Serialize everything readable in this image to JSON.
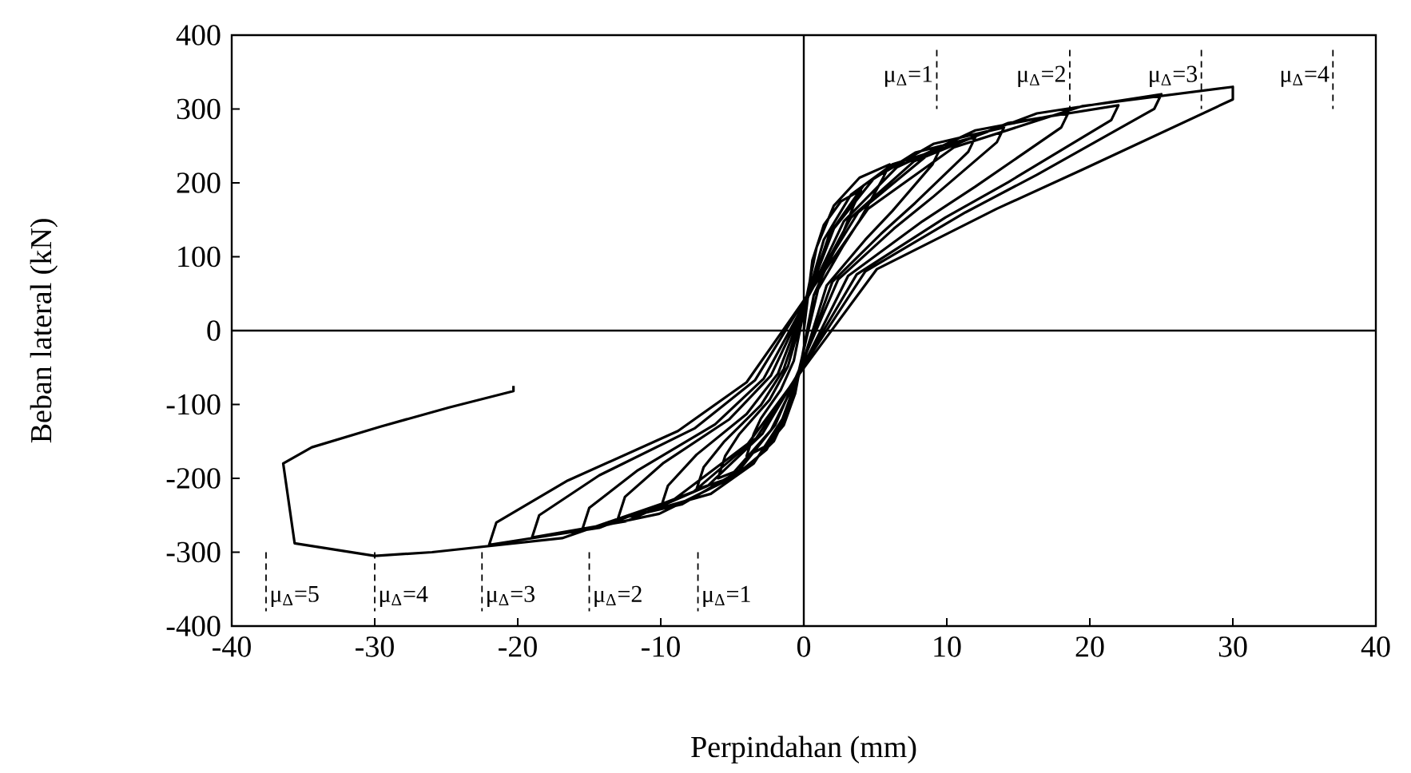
{
  "chart_data": {
    "type": "line",
    "xlabel": "Perpindahan (mm)",
    "ylabel": "Beban lateral (kN)",
    "xlim": [
      -40,
      40
    ],
    "ylim": [
      -400,
      400
    ],
    "xticks": [
      -40,
      -30,
      -20,
      -10,
      0,
      10,
      20,
      30,
      40
    ],
    "yticks": [
      -400,
      -300,
      -200,
      -100,
      0,
      100,
      200,
      300,
      400
    ],
    "marker": "none",
    "line_style": "solid",
    "ref_lines": [
      {
        "axis": "x",
        "value": 0,
        "color": "#000000",
        "line_style": "solid"
      },
      {
        "axis": "y",
        "value": 0,
        "color": "#000000",
        "line_style": "solid"
      },
      {
        "axis": "x",
        "value": 9.3,
        "color": "#000000",
        "line_style": "dashed"
      },
      {
        "axis": "x",
        "value": 18.6,
        "color": "#000000",
        "line_style": "dashed"
      },
      {
        "axis": "x",
        "value": 27.8,
        "color": "#000000",
        "line_style": "dashed"
      },
      {
        "axis": "x",
        "value": 37,
        "color": "#000000",
        "line_style": "dashed"
      },
      {
        "axis": "x",
        "value": -37.6,
        "color": "#000000",
        "line_style": "dashed"
      },
      {
        "axis": "x",
        "value": -30,
        "color": "#000000",
        "line_style": "dashed"
      },
      {
        "axis": "x",
        "value": -22.5,
        "color": "#000000",
        "line_style": "dashed"
      },
      {
        "axis": "x",
        "value": -15,
        "color": "#000000",
        "line_style": "dashed"
      },
      {
        "axis": "x",
        "value": -7.4,
        "color": "#000000",
        "line_style": "dashed"
      }
    ],
    "annotations": [
      "μ$_{Δ}$=1",
      "μ$_{Δ}$=2",
      "μ$_{Δ}$=3",
      "μ$_{Δ}$=4",
      "μ$_{Δ}$=5",
      "μ$_{Δ}$=4",
      "μ$_{Δ}$=3",
      "μ$_{Δ}$=2",
      "μ$_{Δ}$=1"
    ],
    "series": [
      {
        "color": "#000000",
        "x": [
          0,
          0.6,
          1.4,
          2.6,
          4,
          3.5,
          2.6,
          1.8,
          0.7,
          -0.6,
          -1.4,
          -2.6,
          -4,
          -3.5,
          -3,
          -1.6,
          -0.7,
          0.9,
          2.1,
          3.9,
          6,
          5.5,
          3.9,
          2.7,
          1,
          -0.9,
          -2.1,
          -3.9,
          -6,
          -5.5,
          -4.5,
          -2.4,
          -1.1,
          1.4,
          3.3,
          6.2,
          9.5,
          9,
          6.2,
          4.3,
          1.6,
          -1.1,
          -2.6,
          -4.9,
          -7.5,
          -7,
          -5.6,
          -3,
          -1.4,
          1.8,
          4.2,
          7.8,
          12,
          11.5,
          7.8,
          5.4,
          2,
          -1.5,
          -3.5,
          -6.5,
          -10,
          -9.5,
          -7.5,
          -4,
          -1.8,
          2.1,
          4.9,
          9.1,
          14,
          13.5,
          9.1,
          6.3,
          2.4,
          -2,
          -4.6,
          -8.5,
          -13,
          -12.5,
          -9.8,
          -5.2,
          -2.3,
          2.8,
          6.5,
          12,
          18.5,
          18,
          12,
          8.3,
          3.1,
          -2.3,
          -5.4,
          -10.1,
          -15.5,
          -15,
          -11.6,
          -6.2,
          -2.8,
          3.3,
          7.7,
          14.3,
          22,
          21.5,
          14.3,
          9.9,
          3.7,
          -2.9,
          -6.7,
          -12.4,
          -19,
          -18.5,
          -14.3,
          -7.6,
          -3.4,
          3.8,
          8.8,
          16.3,
          25,
          24.5,
          16.3,
          11.3,
          4.3,
          -3.3,
          -7.7,
          -14.3,
          -22,
          -21.5,
          -16.5,
          -8.8,
          -4,
          4.5,
          10.5,
          19.5,
          30,
          30,
          19.5,
          13.5,
          5.1,
          -3.9,
          -9.1,
          -16.9,
          -26,
          -30,
          -35.6,
          -36.4,
          -34.4,
          -29.6,
          -24.8,
          -20.3,
          -20.3
        ],
        "values": [
          0,
          95,
          143,
          175,
          190,
          170,
          125,
          95,
          48,
          -85,
          -128,
          -156,
          -170,
          -140,
          -119,
          -80,
          -41,
          113,
          169,
          207,
          225,
          205,
          149,
          113,
          56,
          -100,
          -150,
          -184,
          -200,
          -170,
          -140,
          -94,
          -48,
          123,
          184,
          225,
          245,
          225,
          162,
          123,
          61,
          -108,
          -161,
          -198,
          -215,
          -185,
          -151,
          -101,
          -52,
          131,
          197,
          241,
          262,
          242,
          173,
          131,
          66,
          -120,
          -180,
          -221,
          -240,
          -210,
          -168,
          -113,
          -58,
          138,
          206,
          253,
          275,
          255,
          182,
          138,
          69,
          -128,
          -191,
          -235,
          -255,
          -225,
          -179,
          -120,
          -61,
          148,
          221,
          271,
          295,
          275,
          195,
          148,
          74,
          -135,
          -203,
          -248,
          -270,
          -240,
          -189,
          -127,
          -65,
          153,
          229,
          281,
          305,
          285,
          201,
          153,
          76,
          -140,
          -210,
          -258,
          -280,
          -250,
          -196,
          -132,
          -67,
          160,
          240,
          294,
          320,
          300,
          211,
          160,
          80,
          -145,
          -218,
          -267,
          -290,
          -260,
          -203,
          -136,
          -70,
          165,
          248,
          304,
          330,
          313,
          218,
          165,
          83,
          -153,
          -229,
          -281,
          -300,
          -305,
          -288,
          -180,
          -158,
          -130,
          -104,
          -82,
          -75
        ]
      }
    ]
  }
}
